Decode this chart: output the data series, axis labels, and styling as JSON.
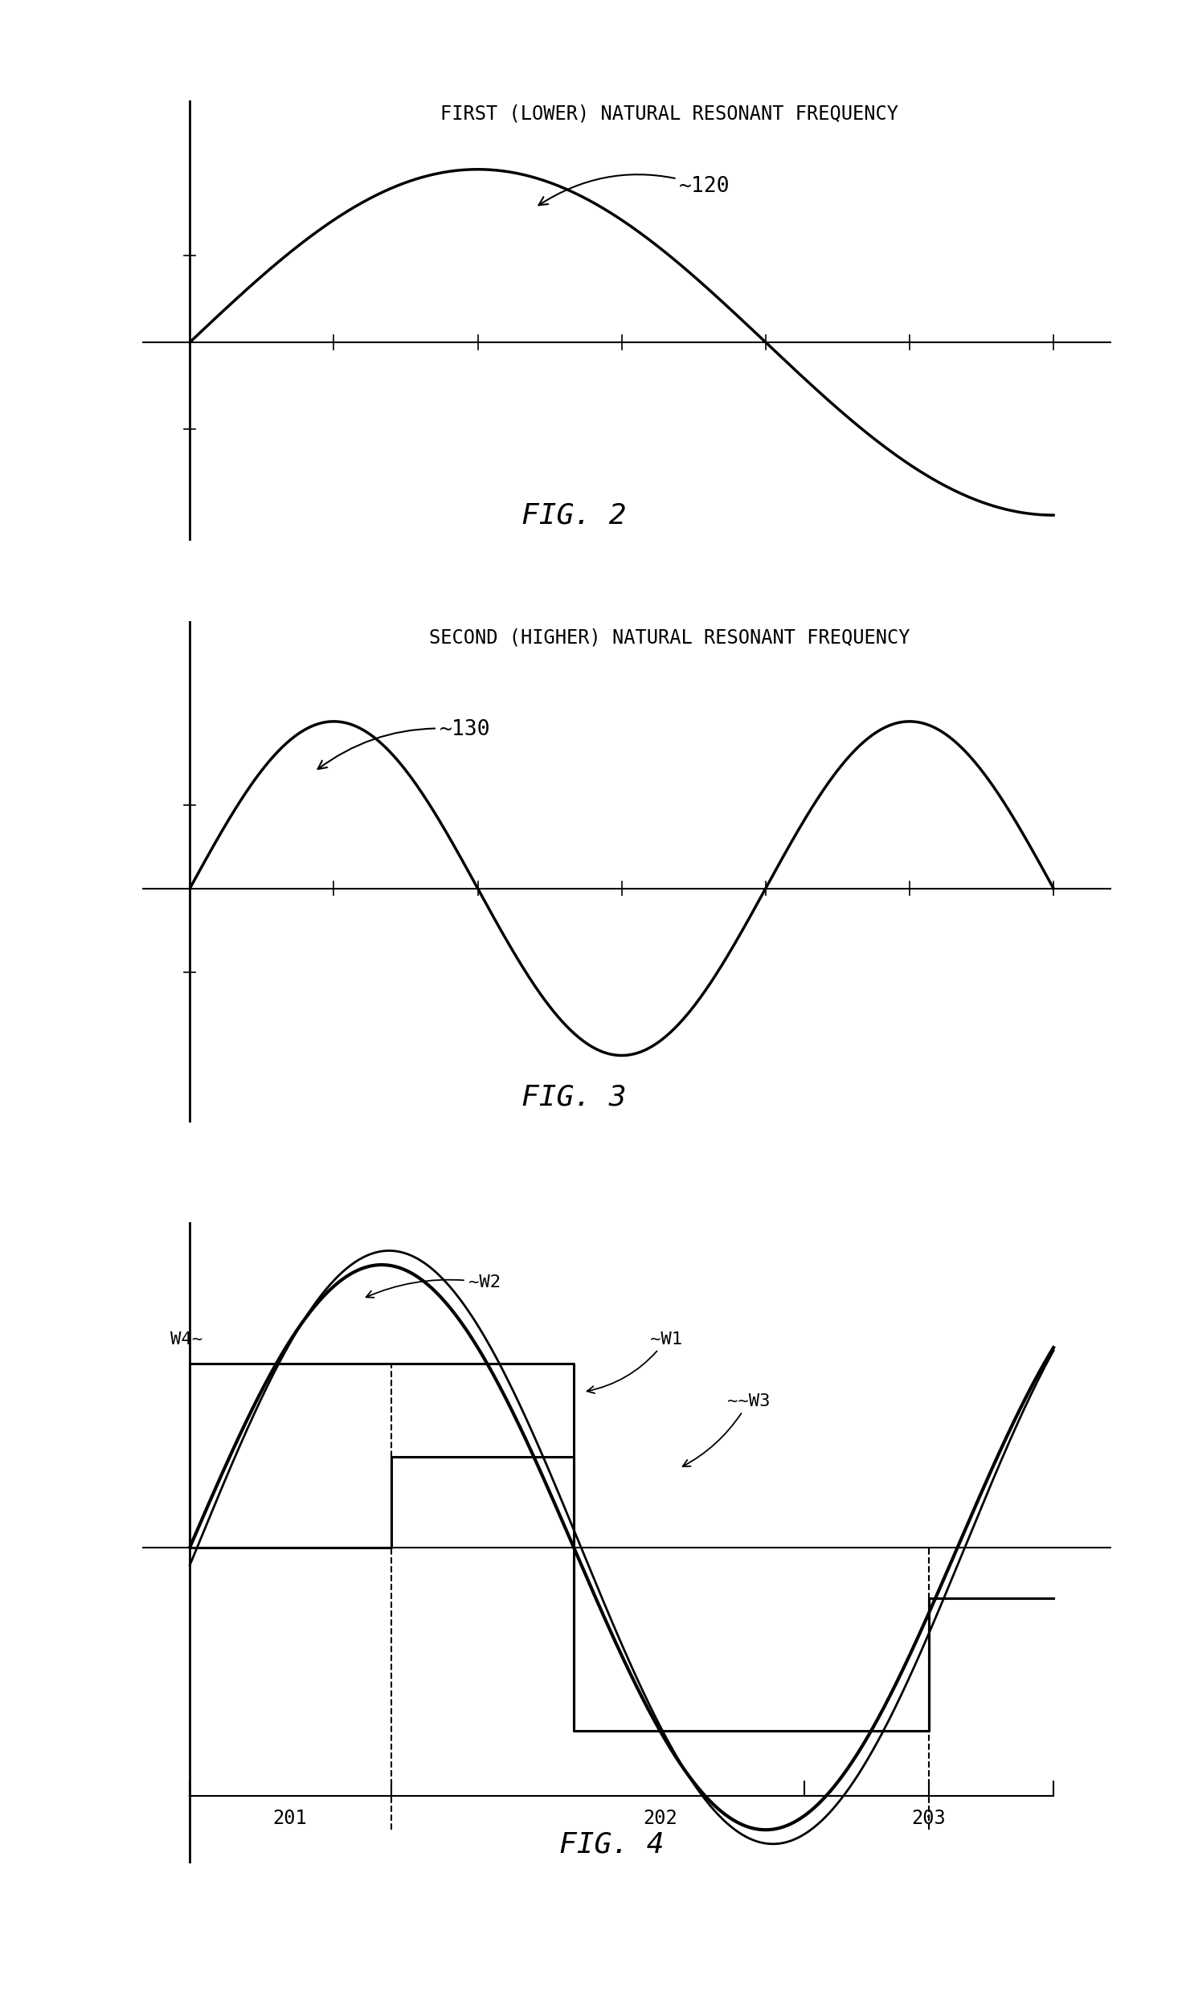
{
  "fig2_title": "FIRST (LOWER) NATURAL RESONANT FREQUENCY",
  "fig2_label": "~120",
  "fig3_title": "SECOND (HIGHER) NATURAL RESONANT FREQUENCY",
  "fig3_label": "~130",
  "fig4_label_w1": "W1",
  "fig4_label_w2": "~W2",
  "fig4_label_w3": "~W3",
  "fig4_label_w4": "W4~",
  "fig4_tick1": "201",
  "fig4_tick2": "202",
  "fig4_tick3": "203",
  "fig2_caption": "FIG. 2",
  "fig3_caption": "FIG. 3",
  "fig4_caption": "FIG. 4",
  "line_color": "#000000",
  "bg_color": "#ffffff",
  "title_fontsize": 17,
  "caption_fontsize": 26,
  "label_fontsize": 16
}
